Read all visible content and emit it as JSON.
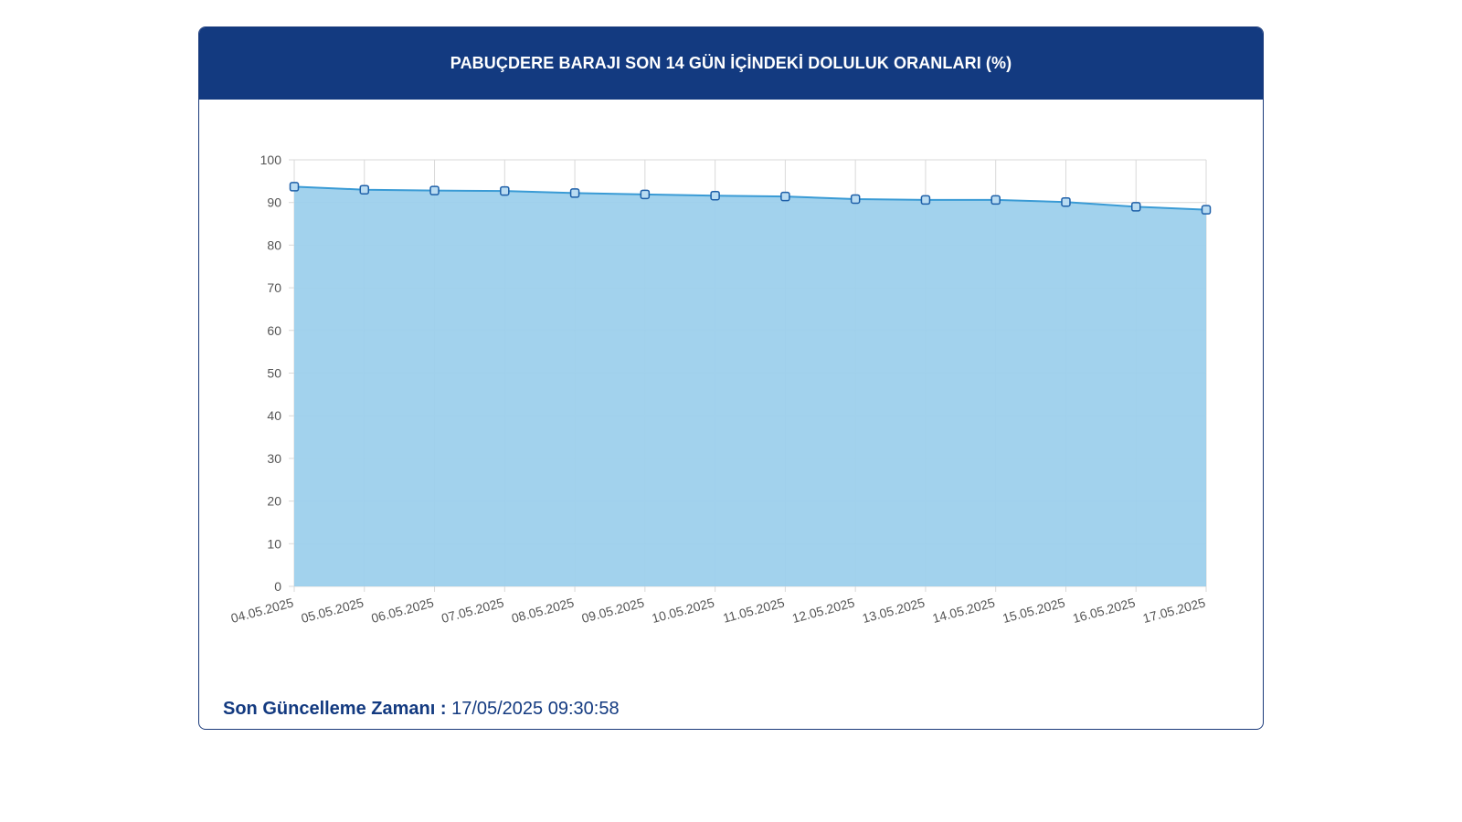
{
  "header": {
    "title": "PABUÇDERE BARAJI SON 14 GÜN İÇİNDEKİ DOLULUK ORANLARI (%)"
  },
  "footer": {
    "label": "Son Güncelleme Zamanı :",
    "value": "17/05/2025 09:30:58"
  },
  "colors": {
    "header_bg": "#133a80",
    "area_fill": "#9dd0ec",
    "line": "#3a9bd5",
    "marker_stroke": "#1d5fa8",
    "marker_fill": "#b9dcf2",
    "grid": "#d9d9d9",
    "footer_text": "#133a80"
  },
  "chart_data": {
    "type": "area",
    "categories": [
      "04.05.2025",
      "05.05.2025",
      "06.05.2025",
      "07.05.2025",
      "08.05.2025",
      "09.05.2025",
      "10.05.2025",
      "11.05.2025",
      "12.05.2025",
      "13.05.2025",
      "14.05.2025",
      "15.05.2025",
      "16.05.2025",
      "17.05.2025"
    ],
    "series": [
      {
        "values": [
          93.7,
          93.0,
          92.8,
          92.7,
          92.2,
          91.9,
          91.6,
          91.4,
          90.8,
          90.6,
          90.6,
          90.1,
          89.0,
          88.3
        ]
      }
    ],
    "ylim": [
      0,
      100
    ],
    "yticks": [
      "0",
      "10",
      "20",
      "30",
      "40",
      "50",
      "60",
      "70",
      "80",
      "90",
      "100"
    ],
    "grid": true,
    "legend": "none",
    "markers": "square"
  }
}
